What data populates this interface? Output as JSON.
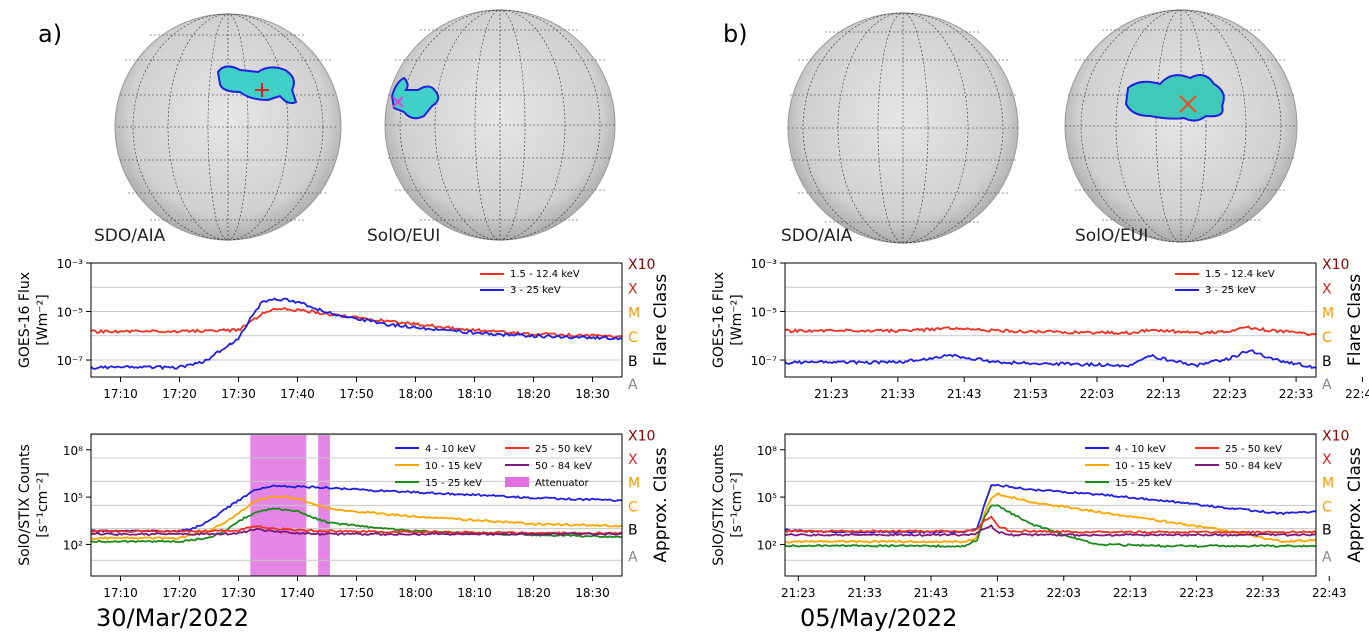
{
  "panels": [
    {
      "label": "a)",
      "date": "30/Mar/2022",
      "images": [
        {
          "label": "SDO/AIA"
        },
        {
          "label": "SolO/EUI"
        }
      ],
      "x_ticks": [
        "17:10",
        "17:20",
        "17:30",
        "17:40",
        "17:50",
        "18:00",
        "18:10",
        "18:20",
        "18:30"
      ]
    },
    {
      "label": "b)",
      "date": "05/May/2022",
      "images": [
        {
          "label": "SDO/AIA"
        },
        {
          "label": "SolO/EUI"
        }
      ],
      "x_ticks": [
        "21:23",
        "21:33",
        "21:43",
        "21:53",
        "22:03",
        "22:13",
        "22:23",
        "22:33",
        "22:43"
      ]
    }
  ],
  "colors": {
    "goes_long": "#f03020",
    "goes_short": "#2020e0",
    "stix_4_10": "#2020e0",
    "stix_10_15": "#ffa500",
    "stix_15_25": "#1a8a1a",
    "stix_25_50": "#f03020",
    "stix_50_84": "#7a1a7a",
    "attenuator": "#e070e0",
    "class_X10": "#8b0000",
    "class_X": "#e02020",
    "class_M": "#ff9900",
    "class_C": "#ff9900",
    "class_B": "#000000",
    "class_A": "#888888"
  },
  "chart_data": [
    {
      "type": "line",
      "id": "goes_a",
      "ylabel_lines": [
        "GOES-16 Flux",
        "[Wm⁻²]"
      ],
      "right_label": "Flare Class",
      "y_scale": "log",
      "ylim": [
        2e-08,
        0.001
      ],
      "yticks": [
        "10⁻³",
        "10⁻⁵",
        "10⁻⁷"
      ],
      "classes": [
        "X10",
        "X",
        "M",
        "C",
        "B",
        "A"
      ],
      "x_range_min": [
        5,
        95
      ],
      "legend": [
        "1.5 - 12.4 keV",
        "3 - 25 keV"
      ],
      "series": [
        {
          "name": "1.5 - 12.4 keV",
          "x": [
            5,
            20,
            30,
            32,
            34,
            36,
            38,
            42,
            50,
            60,
            70,
            80,
            95
          ],
          "y": [
            1.5e-06,
            1.5e-06,
            1.7e-06,
            3.5e-06,
            8e-06,
            1.2e-05,
            1.25e-05,
            1e-05,
            5.5e-06,
            3e-06,
            1.7e-06,
            1.2e-06,
            9e-07
          ]
        },
        {
          "name": "3 - 25 keV",
          "x": [
            5,
            20,
            24,
            27,
            30,
            32,
            34,
            36,
            40,
            45,
            55,
            65,
            75,
            85,
            95
          ],
          "y": [
            5e-08,
            5e-08,
            8e-08,
            2.5e-07,
            8e-07,
            5e-06,
            2.5e-05,
            3.5e-05,
            2.5e-05,
            9e-06,
            3e-06,
            1.7e-06,
            1.1e-06,
            9e-07,
            8e-07
          ]
        }
      ]
    },
    {
      "type": "line",
      "id": "stix_a",
      "ylabel_lines": [
        "SolO/STIX Counts",
        "[s⁻¹cm⁻²]"
      ],
      "right_label": "Approx. Class",
      "y_scale": "log",
      "ylim": [
        1,
        1000000000.0
      ],
      "yticks": [
        "10⁸",
        "10⁵",
        "10²"
      ],
      "classes": [
        "X10",
        "X",
        "M",
        "C",
        "B",
        "A"
      ],
      "x_range_min": [
        5,
        95
      ],
      "legend": [
        "4 - 10 keV",
        "10 - 15 keV",
        "15 - 25 keV",
        "25 - 50 keV",
        "50 - 84 keV",
        "Attenuator"
      ],
      "attenuator_intervals": [
        [
          32,
          41.5
        ],
        [
          43.5,
          45.5
        ]
      ],
      "series": [
        {
          "name": "4 - 10 keV",
          "x": [
            5,
            20,
            22,
            25,
            28,
            30,
            33,
            36,
            40,
            45,
            50,
            60,
            70,
            80,
            95
          ],
          "y": [
            700,
            700,
            900,
            3000,
            20000,
            60000,
            300000,
            500000,
            450000,
            400000,
            300000,
            200000,
            140000,
            90000,
            60000
          ]
        },
        {
          "name": "10 - 15 keV",
          "x": [
            5,
            20,
            25,
            28,
            30,
            33,
            36,
            40,
            45,
            50,
            60,
            70,
            80,
            95
          ],
          "y": [
            250,
            250,
            700,
            3000,
            10000,
            60000,
            120000,
            80000,
            20000,
            12000,
            6000,
            3500,
            2000,
            1500
          ]
        },
        {
          "name": "15 - 25 keV",
          "x": [
            5,
            20,
            25,
            28,
            30,
            33,
            36,
            40,
            45,
            50,
            60,
            70,
            80,
            95
          ],
          "y": [
            150,
            150,
            250,
            800,
            3000,
            12000,
            20000,
            12000,
            2500,
            1500,
            700,
            500,
            400,
            300
          ]
        },
        {
          "name": "25 - 50 keV",
          "x": [
            5,
            25,
            30,
            33,
            36,
            40,
            45,
            60,
            95
          ],
          "y": [
            700,
            700,
            800,
            1500,
            1000,
            800,
            700,
            600,
            500
          ]
        },
        {
          "name": "50 - 84 keV",
          "x": [
            5,
            25,
            30,
            33,
            36,
            40,
            45,
            95
          ],
          "y": [
            450,
            450,
            500,
            900,
            700,
            500,
            450,
            450
          ]
        }
      ]
    },
    {
      "type": "line",
      "id": "goes_b",
      "ylabel_lines": [
        "GOES-16 Flux",
        "[Wm⁻²]"
      ],
      "right_label": "Flare Class",
      "y_scale": "log",
      "ylim": [
        2e-08,
        0.001
      ],
      "yticks": [
        "10⁻³",
        "10⁻⁵",
        "10⁻⁷"
      ],
      "classes": [
        "X10",
        "X",
        "M",
        "C",
        "B",
        "A"
      ],
      "x_range_min": [
        8,
        88
      ],
      "legend": [
        "1.5 - 12.4 keV",
        "3 - 25 keV"
      ],
      "series": [
        {
          "name": "1.5 - 12.4 keV",
          "x": [
            8,
            25,
            30,
            33,
            40,
            50,
            60,
            63,
            70,
            75,
            78,
            80,
            88
          ],
          "y": [
            1.6e-06,
            1.6e-06,
            1.8e-06,
            2e-06,
            1.6e-06,
            1.4e-06,
            1.3e-06,
            1.8e-06,
            1.3e-06,
            1.6e-06,
            2.2e-06,
            1.8e-06,
            1.1e-06
          ]
        },
        {
          "name": "3 - 25 keV",
          "x": [
            8,
            25,
            30,
            33,
            40,
            50,
            60,
            63,
            66,
            70,
            75,
            78,
            82,
            88
          ],
          "y": [
            8e-08,
            8e-08,
            1.2e-07,
            1.6e-07,
            8e-08,
            7e-08,
            6e-08,
            1.5e-07,
            1e-07,
            6e-08,
            1.2e-07,
            2.5e-07,
            1e-07,
            5e-08
          ]
        }
      ]
    },
    {
      "type": "line",
      "id": "stix_b",
      "ylabel_lines": [
        "SolO/STIX Counts",
        "[s⁻¹cm⁻²]"
      ],
      "right_label": "Approx. Class",
      "y_scale": "log",
      "ylim": [
        1,
        1000000000.0
      ],
      "yticks": [
        "10⁸",
        "10⁵",
        "10²"
      ],
      "classes": [
        "X10",
        "X",
        "M",
        "C",
        "B",
        "A"
      ],
      "x_range_min": [
        13,
        93
      ],
      "legend": [
        "4 - 10 keV",
        "10 - 15 keV",
        "15 - 25 keV",
        "25 - 50 keV",
        "50 - 84 keV"
      ],
      "series": [
        {
          "name": "4 - 10 keV",
          "x": [
            13,
            20,
            30,
            40,
            42,
            43,
            44,
            45,
            47,
            50,
            60,
            70,
            80,
            88,
            93
          ],
          "y": [
            800,
            600,
            600,
            600,
            1000,
            30000,
            500000,
            550000,
            450000,
            300000,
            150000,
            60000,
            20000,
            9000,
            12000
          ]
        },
        {
          "name": "10 - 15 keV",
          "x": [
            13,
            30,
            40,
            42,
            43,
            44,
            45,
            47,
            50,
            60,
            70,
            80,
            88,
            93
          ],
          "y": [
            150,
            150,
            150,
            300,
            8000,
            80000,
            150000,
            100000,
            50000,
            12000,
            3000,
            700,
            150,
            200
          ]
        },
        {
          "name": "15 - 25 keV",
          "x": [
            13,
            30,
            40,
            42,
            43,
            44,
            45,
            47,
            50,
            55,
            60,
            70,
            93
          ],
          "y": [
            80,
            80,
            80,
            200,
            5000,
            25000,
            30000,
            10000,
            2000,
            400,
            100,
            80,
            80
          ]
        },
        {
          "name": "25 - 50 keV",
          "x": [
            13,
            40,
            42,
            43,
            44,
            45,
            47,
            60,
            93
          ],
          "y": [
            700,
            700,
            900,
            3000,
            6000,
            1500,
            700,
            600,
            600
          ]
        },
        {
          "name": "50 - 84 keV",
          "x": [
            13,
            40,
            42,
            43,
            44,
            45,
            47,
            93
          ],
          "y": [
            400,
            400,
            500,
            1000,
            1500,
            600,
            400,
            400
          ]
        }
      ]
    }
  ]
}
